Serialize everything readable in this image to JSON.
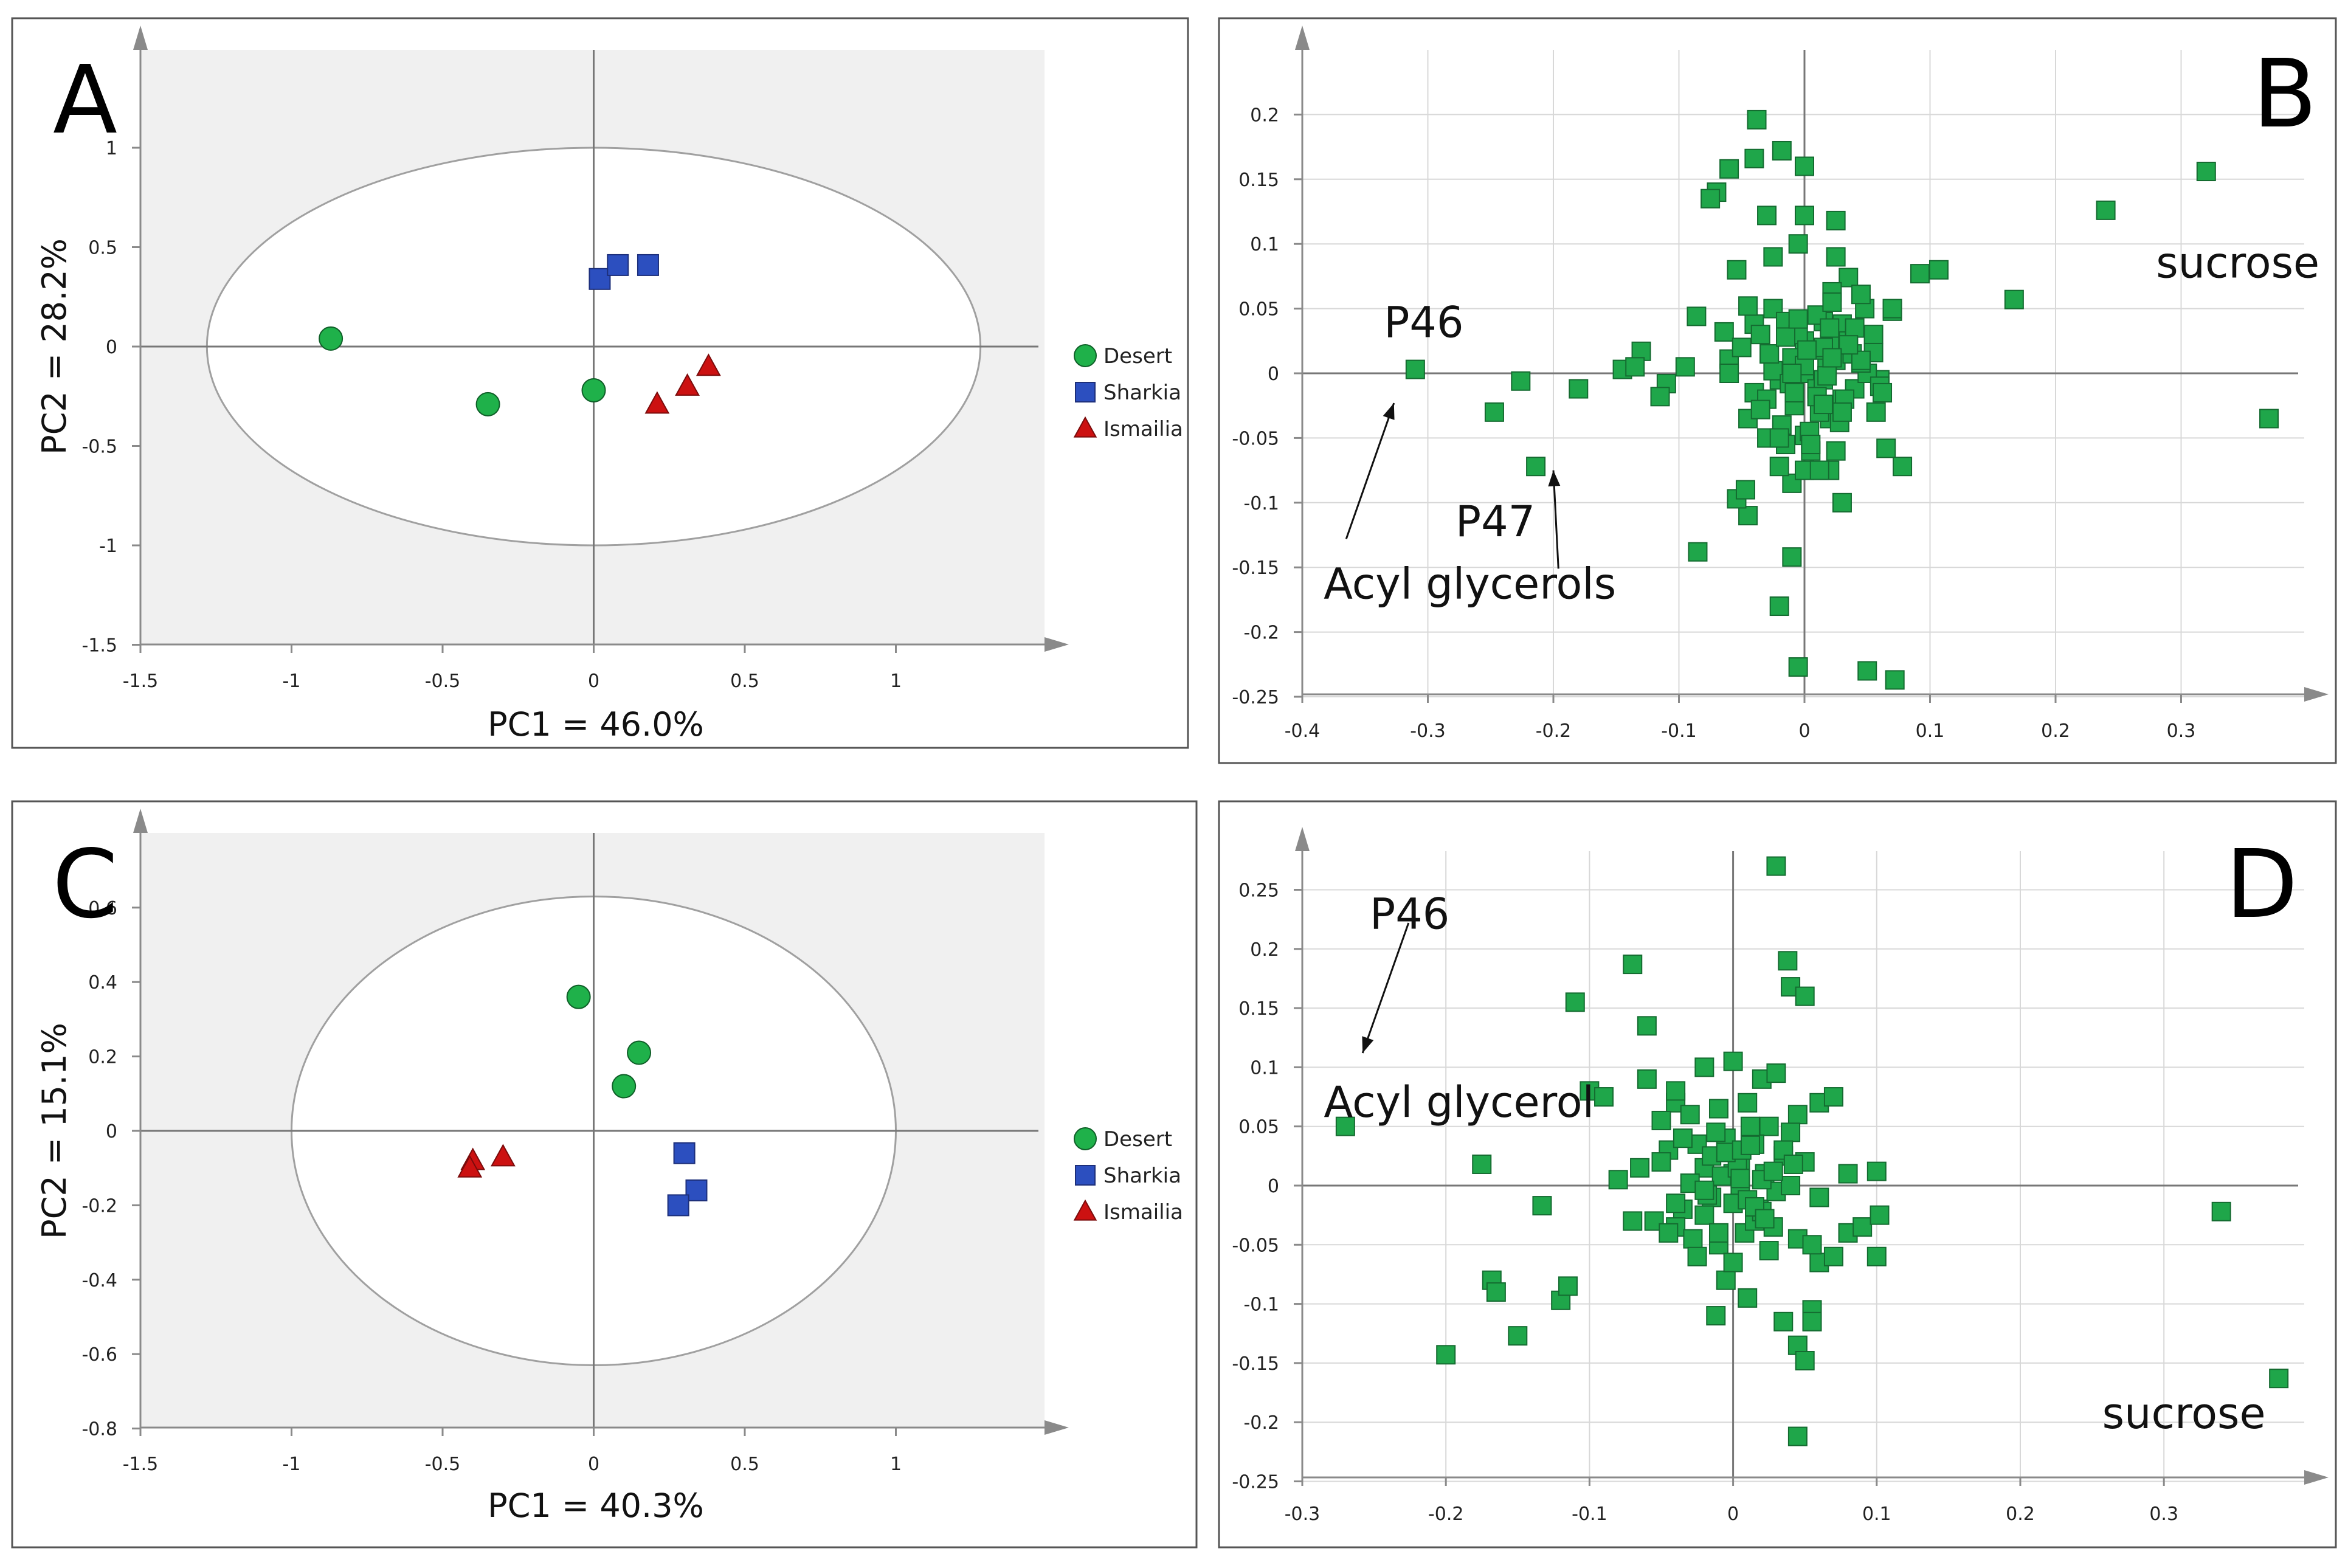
{
  "colors": {
    "desert": "#1fb14a",
    "sharkia": "#2c4fbf",
    "ismailia": "#cc1111",
    "loading": "#1fa64a",
    "shade": "#f0f0f0",
    "grid": "#d8d8d8",
    "axis": "#8a8a8a",
    "ellipse": "#a0a0a0"
  },
  "chart_data": [
    {
      "panel": "A",
      "type": "scatter",
      "title": "A",
      "xlabel": "PC1 = 46.0%",
      "ylabel": "PC2 = 28.2%",
      "xlim": [
        -1.5,
        1.5
      ],
      "ylim": [
        -1.5,
        1.5
      ],
      "xticks": [
        -1.5,
        -1,
        -0.5,
        0,
        0.5,
        1
      ],
      "xtick_labels": [
        "-1.5",
        "-1",
        "-0.5",
        "0",
        "0.5",
        "1"
      ],
      "yticks": [
        1,
        0.5,
        0,
        -0.5,
        -1,
        -1.5
      ],
      "ytick_labels": [
        "1",
        "0.5",
        "0",
        "-0.5",
        "-1",
        "-1.5"
      ],
      "ellipse": {
        "cx": 0,
        "cy": 0,
        "rx": 1.28,
        "ry": 1.0
      },
      "legend_position": "right",
      "series": [
        {
          "name": "Desert",
          "marker": "circle",
          "color": "#1fb14a",
          "x": [
            -0.87,
            -0.35,
            0.0
          ],
          "y": [
            0.04,
            -0.29,
            -0.22
          ]
        },
        {
          "name": "Sharkia",
          "marker": "square",
          "color": "#2c4fbf",
          "x": [
            0.02,
            0.08,
            0.18
          ],
          "y": [
            0.34,
            0.41,
            0.41
          ]
        },
        {
          "name": "Ismailia",
          "marker": "triangle",
          "color": "#cc1111",
          "x": [
            0.21,
            0.31,
            0.38
          ],
          "y": [
            -0.29,
            -0.2,
            -0.1
          ]
        }
      ]
    },
    {
      "panel": "B",
      "type": "scatter",
      "title": "B",
      "xlabel": "",
      "ylabel": "",
      "xlim": [
        -0.4,
        0.4
      ],
      "ylim": [
        -0.25,
        0.25
      ],
      "xticks": [
        -0.4,
        -0.3,
        -0.2,
        -0.1,
        0,
        0.1,
        0.2,
        0.3
      ],
      "xtick_labels": [
        "-0.4",
        "-0.3",
        "-0.2",
        "-0.1",
        "0",
        "0.1",
        "0.2",
        "0.3"
      ],
      "yticks": [
        0.2,
        0.15,
        0.1,
        0.05,
        0,
        -0.05,
        -0.1,
        -0.15,
        -0.2,
        -0.25
      ],
      "ytick_labels": [
        "0.2",
        "0.15",
        "0.1",
        "0.05",
        "0",
        "-0.05",
        "-0.1",
        "-0.15",
        "-0.2",
        "-0.25"
      ],
      "annotations": [
        {
          "text": "P46",
          "x": -0.335,
          "y": 0.028
        },
        {
          "text": "P47",
          "x": -0.278,
          "y": -0.126
        },
        {
          "text": "Acyl glycerols",
          "x": -0.383,
          "y": -0.174
        },
        {
          "text": "sucrose",
          "x": 0.28,
          "y": 0.074
        }
      ],
      "arrows": [
        {
          "x1": -0.365,
          "y1": -0.128,
          "x2": -0.327,
          "y2": -0.023
        },
        {
          "x1": -0.196,
          "y1": -0.151,
          "x2": -0.2,
          "y2": -0.075
        }
      ],
      "series": [
        {
          "name": "loadings",
          "marker": "square",
          "color": "#1fa64a",
          "x": [
            -0.31,
            -0.247,
            -0.226,
            -0.18,
            -0.214,
            -0.085,
            -0.045,
            -0.02,
            0.32,
            0.24,
            0.37,
            0.167,
            0.05,
            0.072,
            -0.005,
            -0.038,
            -0.018,
            0.092,
            0.107,
            0.07,
            0.07,
            -0.06,
            -0.04,
            0.0,
            0.0,
            -0.13,
            -0.11,
            -0.115,
            -0.095,
            -0.145,
            -0.135,
            -0.06,
            -0.054,
            -0.07,
            -0.075,
            -0.03,
            0.025,
            0.025,
            0.035,
            -0.025,
            -0.005,
            0.022,
            0.048,
            0.055,
            0.045,
            0.057,
            0.065,
            0.078,
            -0.086,
            -0.064,
            -0.04,
            0.03,
            0.04,
            0.06,
            -0.03,
            0.0,
            0.02,
            -0.01,
            -0.054,
            -0.047,
            -0.02,
            0.02,
            0.03,
            -0.01,
            0.0,
            -0.015,
            0.005,
            0.012,
            -0.045,
            -0.025,
            0.015,
            0.035,
            0.055,
            -0.05,
            -0.035,
            -0.015,
            0.01,
            0.022,
            0.04,
            0.05,
            -0.06,
            -0.028,
            0.0,
            0.025,
            0.03,
            -0.04,
            -0.02,
            0.0,
            0.018,
            0.045,
            -0.01,
            0.008,
            0.02,
            0.06,
            -0.03,
            -0.008,
            0.012,
            0.032,
            -0.045,
            -0.018,
            0.004,
            0.028,
            0.062,
            -0.005,
            0.015,
            0.038,
            -0.025,
            0.0,
            0.02,
            0.045,
            -0.035,
            -0.012,
            0.01,
            0.03,
            -0.02,
            0.005,
            0.025,
            -0.028,
            -0.008,
            0.015,
            0.035,
            -0.015,
            0.0,
            0.018,
            -0.005,
            0.01,
            0.022,
            0.002,
            0.015,
            -0.01
          ],
          "y": [
            0.003,
            -0.03,
            -0.006,
            -0.012,
            -0.072,
            -0.138,
            -0.11,
            -0.18,
            0.156,
            0.126,
            -0.035,
            0.057,
            -0.23,
            -0.237,
            -0.227,
            0.196,
            0.172,
            0.077,
            0.08,
            0.048,
            0.05,
            0.158,
            0.166,
            0.16,
            0.122,
            0.017,
            -0.008,
            -0.018,
            0.005,
            0.003,
            0.005,
            0.011,
            0.08,
            0.14,
            0.135,
            0.122,
            0.118,
            0.09,
            0.074,
            0.09,
            0.1,
            0.063,
            0.05,
            0.03,
            0.061,
            -0.03,
            -0.058,
            -0.072,
            0.044,
            0.032,
            0.038,
            0.038,
            -0.012,
            -0.005,
            -0.05,
            -0.048,
            -0.035,
            -0.085,
            -0.097,
            -0.09,
            -0.072,
            -0.075,
            -0.1,
            -0.142,
            -0.075,
            -0.055,
            -0.06,
            -0.075,
            0.052,
            0.05,
            0.04,
            0.025,
            0.016,
            0.02,
            0.03,
            0.04,
            0.045,
            0.055,
            0.035,
            0.0,
            0.0,
            0.015,
            0.025,
            0.01,
            -0.02,
            -0.015,
            -0.005,
            0.0,
            0.005,
            0.008,
            0.012,
            0.018,
            0.022,
            -0.01,
            -0.02,
            -0.025,
            -0.03,
            -0.02,
            -0.035,
            -0.04,
            -0.045,
            -0.038,
            -0.015,
            0.03,
            0.02,
            0.015,
            0.002,
            0.006,
            0.035,
            0.01,
            -0.028,
            -0.008,
            -0.012,
            -0.03,
            -0.05,
            -0.055,
            -0.06,
            0.015,
            -0.015,
            -0.005,
            0.022,
            0.028,
            0.006,
            -0.002,
            0.042,
            -0.018,
            0.012,
            0.018,
            -0.024,
            0.0
          ]
        }
      ]
    },
    {
      "panel": "C",
      "type": "scatter",
      "title": "C",
      "xlabel": "PC1 = 40.3%",
      "ylabel": "PC2 = 15.1%",
      "xlim": [
        -1.5,
        1.5
      ],
      "ylim": [
        -0.8,
        0.8
      ],
      "xticks": [
        -1.5,
        -1,
        -0.5,
        0,
        0.5,
        1
      ],
      "xtick_labels": [
        "-1.5",
        "-1",
        "-0.5",
        "0",
        "0.5",
        "1"
      ],
      "yticks": [
        0.6,
        0.4,
        0.2,
        0,
        -0.2,
        -0.4,
        -0.6,
        -0.8
      ],
      "ytick_labels": [
        "0.6",
        "0.4",
        "0.2",
        "0",
        "-0.2",
        "-0.4",
        "-0.6",
        "-0.8"
      ],
      "ellipse": {
        "cx": 0,
        "cy": 0,
        "rx": 1.0,
        "ry": 0.63
      },
      "legend_position": "right",
      "series": [
        {
          "name": "Desert",
          "marker": "circle",
          "color": "#1fb14a",
          "x": [
            -0.05,
            0.15,
            0.1
          ],
          "y": [
            0.36,
            0.21,
            0.12
          ]
        },
        {
          "name": "Sharkia",
          "marker": "square",
          "color": "#2c4fbf",
          "x": [
            0.3,
            0.34,
            0.28
          ],
          "y": [
            -0.06,
            -0.16,
            -0.2
          ]
        },
        {
          "name": "Ismailia",
          "marker": "triangle",
          "color": "#cc1111",
          "x": [
            -0.4,
            -0.41,
            -0.3
          ],
          "y": [
            -0.08,
            -0.1,
            -0.07
          ]
        }
      ]
    },
    {
      "panel": "D",
      "type": "scatter",
      "title": "D",
      "xlabel": "",
      "ylabel": "",
      "xlim": [
        -0.3,
        0.4
      ],
      "ylim": [
        -0.25,
        0.3
      ],
      "xticks": [
        -0.3,
        -0.2,
        -0.1,
        0,
        0.1,
        0.2,
        0.3
      ],
      "xtick_labels": [
        "-0.3",
        "-0.2",
        "-0.1",
        "0",
        "0.1",
        "0.2",
        "0.3"
      ],
      "yticks": [
        0.25,
        0.2,
        0.15,
        0.1,
        0.05,
        0,
        -0.05,
        -0.1,
        -0.15,
        -0.2,
        -0.25
      ],
      "ytick_labels": [
        "0.25",
        "0.2",
        "0.15",
        "0.1",
        "0.05",
        "0",
        "-0.05",
        "-0.1",
        "-0.15",
        "-0.2",
        "-0.25"
      ],
      "annotations": [
        {
          "text": "P46",
          "x": -0.253,
          "y": 0.217
        },
        {
          "text": "Acyl glycerol",
          "x": -0.285,
          "y": 0.058
        },
        {
          "text": "sucrose",
          "x": 0.257,
          "y": -0.205
        }
      ],
      "arrows": [
        {
          "x1": -0.226,
          "y1": 0.222,
          "x2": -0.258,
          "y2": 0.112
        }
      ],
      "series": [
        {
          "name": "loadings",
          "marker": "square",
          "color": "#1fa64a",
          "x": [
            -0.27,
            -0.2,
            -0.175,
            -0.168,
            -0.165,
            -0.15,
            -0.133,
            -0.12,
            -0.11,
            -0.1,
            -0.09,
            -0.07,
            -0.06,
            -0.04,
            0.03,
            0.038,
            0.04,
            0.05,
            0.045,
            0.34,
            0.38,
            0.045,
            0.05,
            0.055,
            -0.115,
            -0.012,
            -0.005,
            0.01,
            0.035,
            0.055,
            0.06,
            0.07,
            0.08,
            0.09,
            0.1,
            0.1,
            0.102,
            -0.06,
            -0.04,
            -0.02,
            0.0,
            0.02,
            0.03,
            0.045,
            -0.05,
            -0.03,
            -0.01,
            0.01,
            0.025,
            0.04,
            0.06,
            0.07,
            -0.08,
            -0.065,
            -0.045,
            -0.025,
            -0.005,
            0.015,
            0.035,
            -0.055,
            -0.035,
            -0.015,
            0.005,
            0.022,
            0.05,
            -0.07,
            -0.04,
            -0.02,
            0.0,
            0.018,
            0.03,
            0.06,
            -0.045,
            -0.028,
            -0.01,
            0.008,
            0.028,
            0.045,
            -0.05,
            -0.02,
            0.0,
            0.02,
            0.04,
            -0.035,
            -0.012,
            0.012,
            0.035,
            -0.025,
            0.0,
            0.025,
            -0.015,
            0.005,
            0.015,
            -0.008,
            0.01,
            0.028,
            -0.04,
            -0.018,
            0.003,
            0.02,
            0.042,
            -0.03,
            -0.005,
            0.015,
            0.055,
            0.08,
            -0.01,
            0.006,
            0.022,
            0.005,
            -0.02,
            0.012
          ],
          "y": [
            0.05,
            -0.143,
            0.018,
            -0.08,
            -0.09,
            -0.127,
            -0.017,
            -0.097,
            0.155,
            0.08,
            0.075,
            0.187,
            0.135,
            0.07,
            0.27,
            0.19,
            0.168,
            0.16,
            -0.212,
            -0.022,
            -0.163,
            -0.135,
            -0.148,
            -0.105,
            -0.085,
            -0.11,
            -0.08,
            -0.095,
            -0.115,
            -0.115,
            -0.065,
            -0.06,
            -0.04,
            -0.035,
            -0.06,
            0.012,
            -0.025,
            0.09,
            0.08,
            0.1,
            0.105,
            0.09,
            0.095,
            0.06,
            0.055,
            0.06,
            0.065,
            0.07,
            0.05,
            0.045,
            0.07,
            0.075,
            0.005,
            0.015,
            0.03,
            0.035,
            0.04,
            0.035,
            0.025,
            -0.03,
            -0.02,
            -0.01,
            0.0,
            0.01,
            0.02,
            -0.03,
            -0.035,
            -0.025,
            -0.015,
            -0.02,
            -0.005,
            -0.01,
            -0.04,
            -0.045,
            -0.05,
            -0.04,
            -0.035,
            -0.045,
            0.02,
            0.015,
            0.01,
            0.005,
            0.0,
            0.04,
            0.045,
            0.05,
            0.03,
            -0.06,
            -0.065,
            -0.055,
            0.025,
            0.02,
            -0.03,
            0.008,
            -0.012,
            0.012,
            -0.015,
            -0.008,
            0.015,
            -0.022,
            0.018,
            0.002,
            0.028,
            -0.018,
            -0.05,
            0.01,
            -0.04,
            0.03,
            -0.028,
            0.006,
            -0.004,
            0.034
          ]
        }
      ]
    }
  ],
  "legend": {
    "items": [
      {
        "label": "Desert",
        "marker": "circle",
        "color": "#1fb14a"
      },
      {
        "label": "Sharkia",
        "marker": "square",
        "color": "#2c4fbf"
      },
      {
        "label": "Ismailia",
        "marker": "triangle",
        "color": "#cc1111"
      }
    ]
  }
}
